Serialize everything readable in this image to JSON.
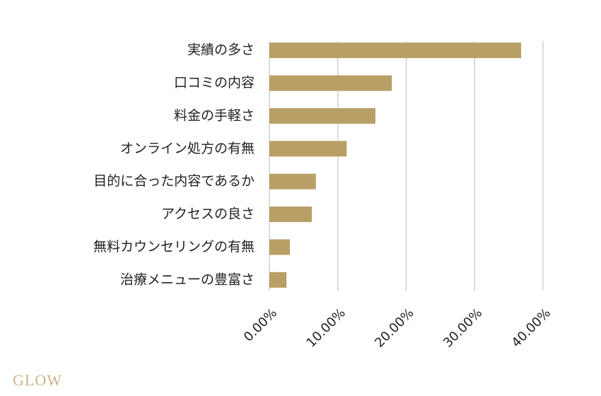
{
  "chart_data": {
    "type": "bar",
    "orientation": "horizontal",
    "categories": [
      "実績の多さ",
      "口コミの内容",
      "料金の手軽さ",
      "オンライン処方の有無",
      "目的に合った内容であるか",
      "アクセスの良さ",
      "無料カウンセリングの有無",
      "治療メニューの豊富さ"
    ],
    "values": [
      36.8,
      17.9,
      15.5,
      11.3,
      6.8,
      6.2,
      3.0,
      2.5
    ],
    "color": "#b89f65",
    "xlim": [
      0,
      40
    ],
    "xticks": [
      {
        "value": 0,
        "label": "0.00%"
      },
      {
        "value": 10,
        "label": "10.00%"
      },
      {
        "value": 20,
        "label": "20.00%"
      },
      {
        "value": 30,
        "label": "30.00%"
      },
      {
        "value": 40,
        "label": "40.00%"
      }
    ],
    "grid": true
  },
  "logo": "GLOW"
}
